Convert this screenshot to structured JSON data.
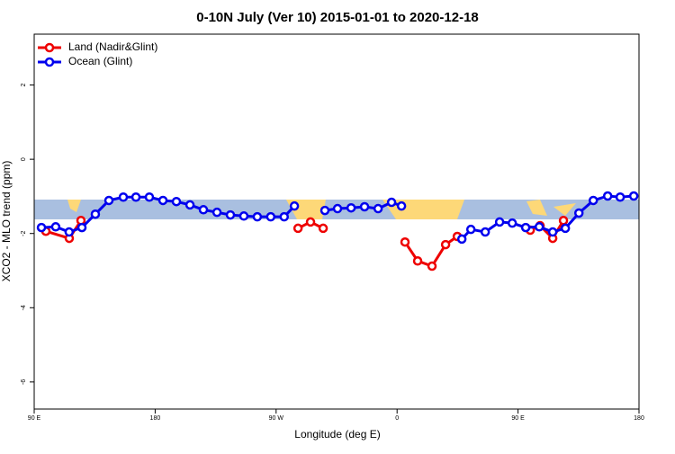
{
  "chart_data": {
    "type": "line",
    "title": "0-10N July (Ver 10)   2015-01-01 to 2020-12-18",
    "x_label": "Longitude (deg E)",
    "y_label": "XCO2 - MLO trend (ppm)",
    "xlim": [
      90,
      540
    ],
    "ylim": [
      -6.73,
      3.37
    ],
    "xticks": [
      {
        "value": 90,
        "label": "90 E"
      },
      180,
      {
        "value": 270,
        "label": "90 W"
      },
      {
        "value": 360,
        "label": "0"
      },
      {
        "value": 450,
        "label": "90 E"
      },
      {
        "value": 540,
        "label": "180"
      }
    ],
    "yticks": [
      -6,
      -4,
      -2,
      0,
      2
    ],
    "legend": "topleft",
    "series": [
      {
        "name": "Land (Nadir&Glint)",
        "color": "#ee0000",
        "x": [
          98.7,
          116.1,
          124.8,
          null,
          286.3,
          295.6,
          305,
          null,
          365.9,
          375.3,
          386,
          396.1,
          404.8,
          null,
          459.1,
          466.4,
          475.8,
          483.8
        ],
        "values": [
          -1.94,
          -2.13,
          -1.65,
          null,
          -1.86,
          -1.69,
          -1.86,
          null,
          -2.23,
          -2.74,
          -2.88,
          -2.3,
          -2.08,
          null,
          -1.91,
          -1.79,
          -2.13,
          -1.65
        ]
      },
      {
        "name": "Ocean (Glint)",
        "color": "#0000ee",
        "x": [
          95.4,
          106,
          116,
          125.5,
          135.5,
          145.6,
          156.3,
          165.7,
          175.7,
          185.8,
          195.8,
          205.9,
          215.9,
          226,
          236,
          246,
          256,
          266,
          276,
          283.6,
          null,
          306.3,
          315.7,
          325.8,
          335.8,
          345.9,
          355.9,
          363.3,
          null,
          408.2,
          414.9,
          425.6,
          436.3,
          445.7,
          455.7,
          465.8,
          475.8,
          485.2,
          495.3,
          506,
          516.7,
          526,
          536.1
        ],
        "values": [
          -1.84,
          -1.82,
          -1.96,
          -1.84,
          -1.48,
          -1.11,
          -1.02,
          -1.02,
          -1.02,
          -1.11,
          -1.14,
          -1.23,
          -1.36,
          -1.43,
          -1.5,
          -1.53,
          -1.55,
          -1.55,
          -1.55,
          -1.26,
          null,
          -1.38,
          -1.33,
          -1.31,
          -1.28,
          -1.33,
          -1.16,
          -1.26,
          null,
          -2.15,
          -1.89,
          -1.96,
          -1.69,
          -1.72,
          -1.84,
          -1.82,
          -1.96,
          -1.86,
          -1.45,
          -1.11,
          -0.99,
          -1.02,
          -0.99
        ]
      }
    ]
  }
}
